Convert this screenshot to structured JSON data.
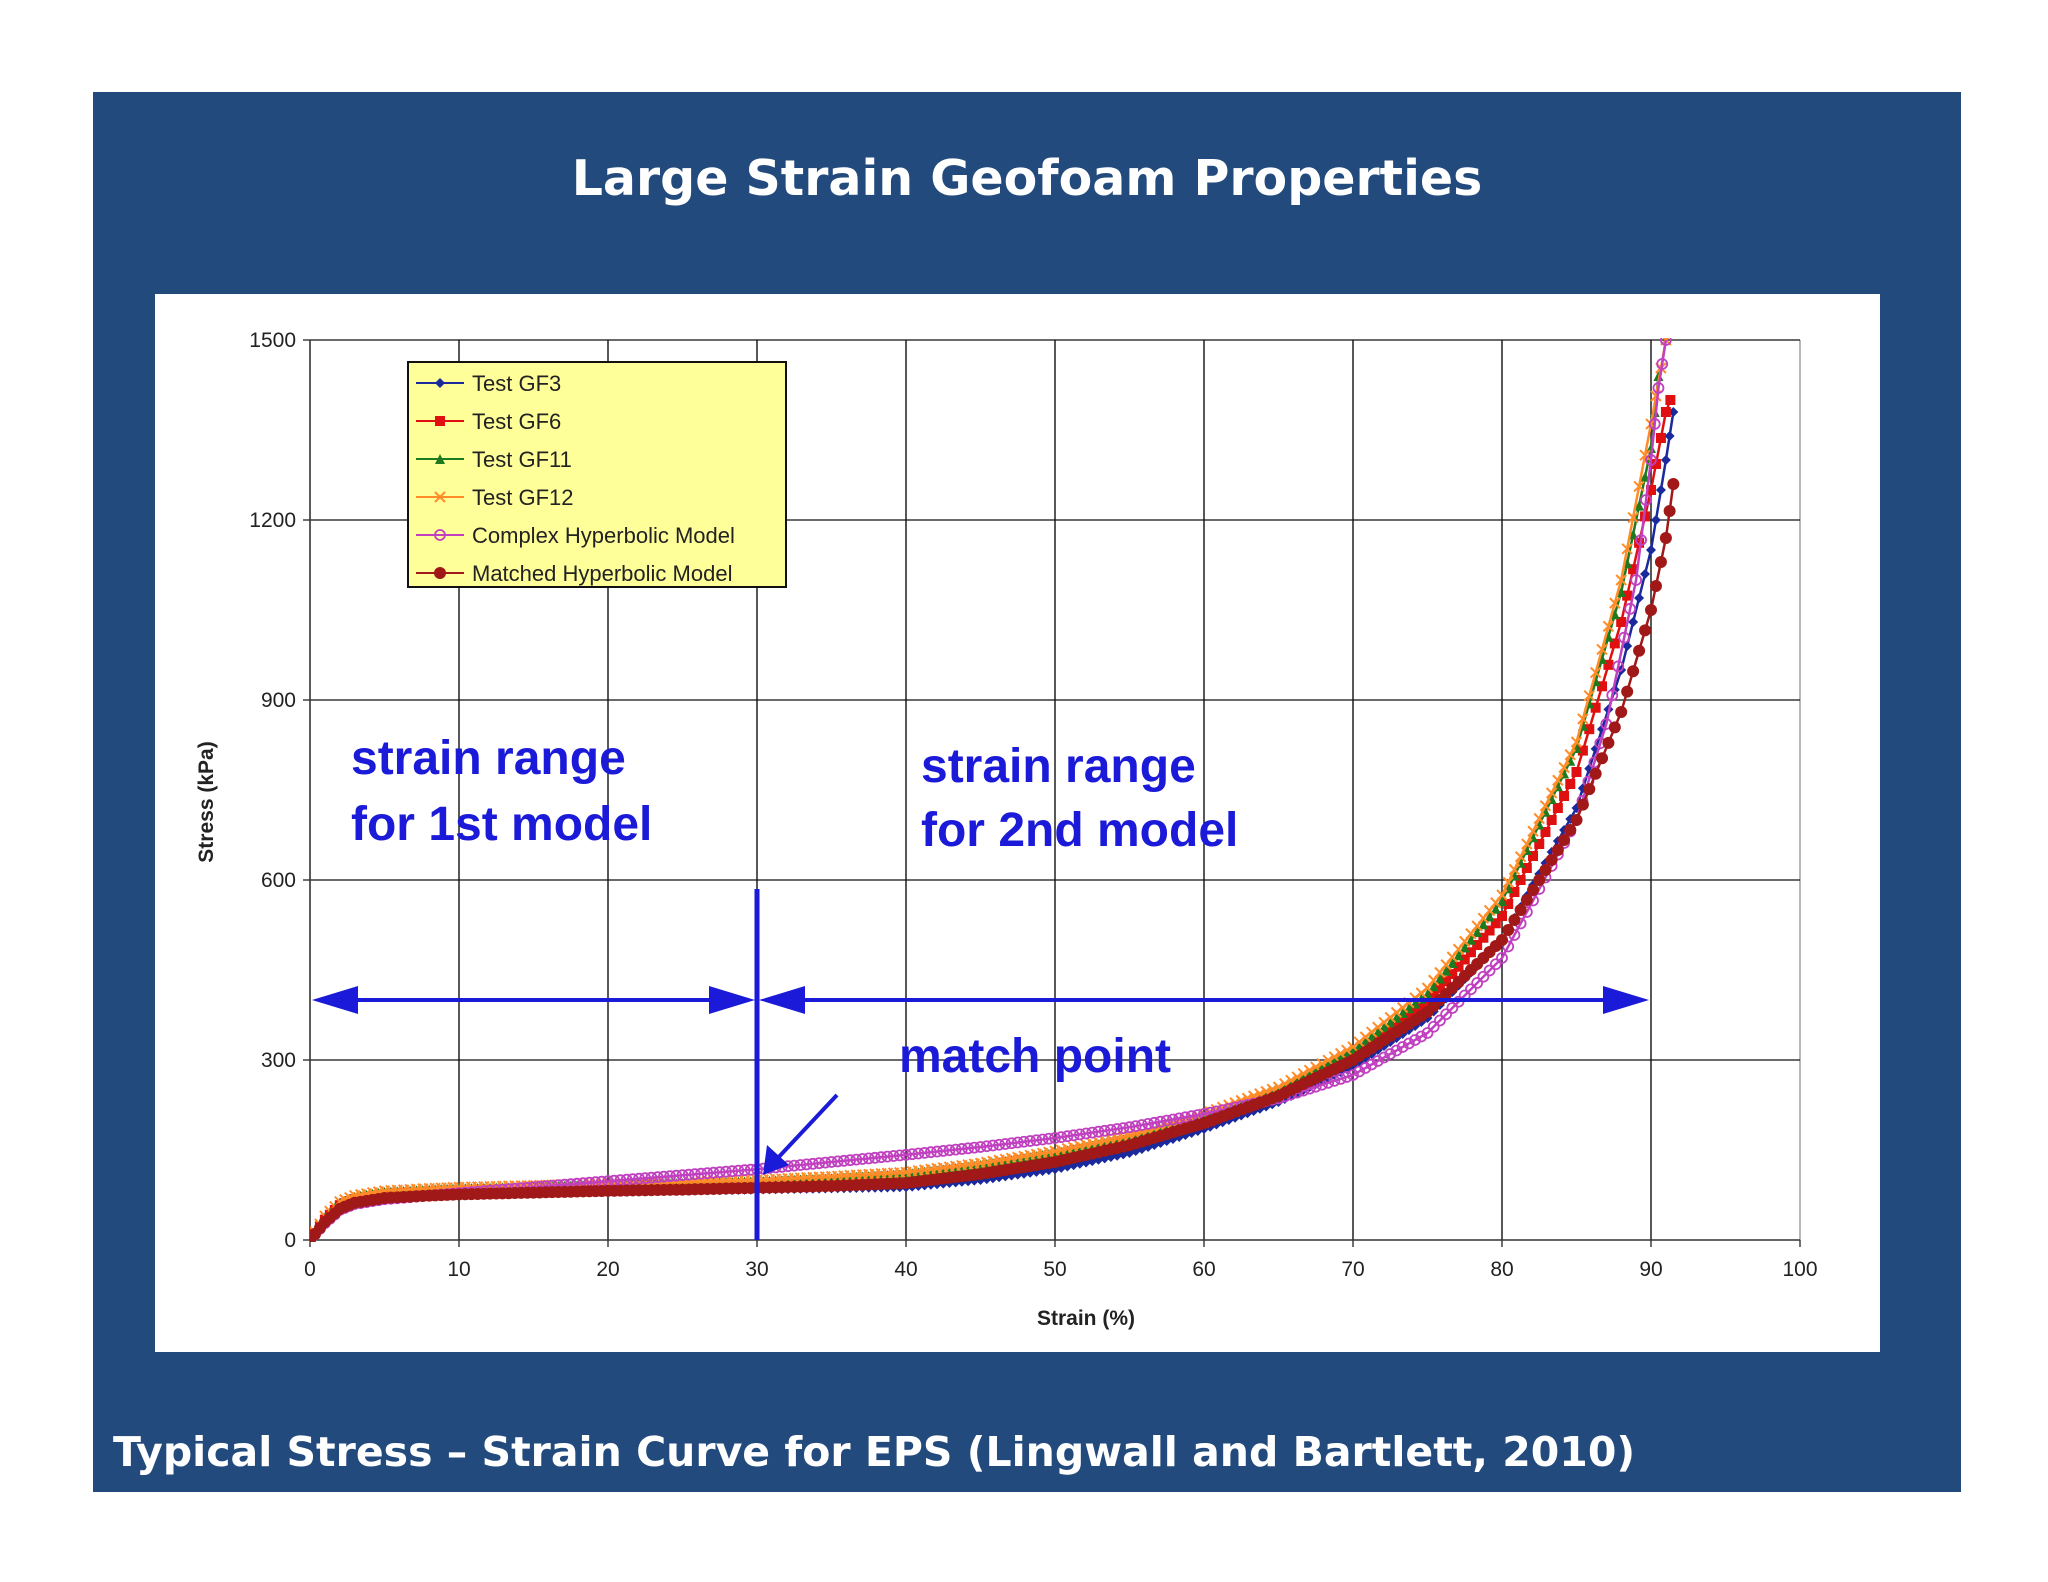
{
  "slide": {
    "title": "Large Strain Geofoam Properties",
    "caption": "Typical Stress – Strain Curve for EPS (Lingwall and Bartlett, 2010)",
    "background_color": "#234a7c"
  },
  "chart_data": {
    "type": "scatter",
    "xlabel": "Strain (%)",
    "ylabel": "Stress (kPa)",
    "xlim": [
      0,
      100
    ],
    "ylim": [
      0,
      1500
    ],
    "xticks": [
      0,
      10,
      20,
      30,
      40,
      50,
      60,
      70,
      80,
      90,
      100
    ],
    "yticks": [
      0,
      300,
      600,
      900,
      1200,
      1500
    ],
    "grid": true,
    "legend_position": "top-left",
    "series": [
      {
        "name": "Test GF3",
        "color": "#1a2a9c",
        "marker": "diamond",
        "x": [
          0,
          1,
          2,
          3,
          5,
          8,
          10,
          15,
          20,
          25,
          30,
          35,
          40,
          45,
          50,
          55,
          60,
          65,
          70,
          75,
          80,
          85,
          88,
          90,
          91,
          91.5
        ],
        "y": [
          0,
          30,
          52,
          62,
          70,
          74,
          76,
          78,
          80,
          82,
          84,
          86,
          88,
          100,
          118,
          145,
          185,
          230,
          290,
          370,
          500,
          720,
          950,
          1150,
          1300,
          1380
        ]
      },
      {
        "name": "Test GF6",
        "color": "#e01010",
        "marker": "square",
        "x": [
          0,
          1,
          2,
          3,
          5,
          8,
          10,
          15,
          20,
          25,
          30,
          35,
          40,
          45,
          50,
          55,
          60,
          65,
          70,
          75,
          80,
          85,
          88,
          90,
          91,
          91.3
        ],
        "y": [
          0,
          34,
          58,
          68,
          76,
          80,
          82,
          85,
          88,
          90,
          92,
          96,
          100,
          115,
          135,
          160,
          195,
          240,
          305,
          395,
          540,
          780,
          1030,
          1250,
          1380,
          1400
        ]
      },
      {
        "name": "Test GF11",
        "color": "#1e7a1e",
        "marker": "triangle",
        "x": [
          0,
          1,
          2,
          3,
          5,
          8,
          10,
          15,
          20,
          25,
          30,
          35,
          40,
          45,
          50,
          55,
          60,
          65,
          70,
          75,
          80,
          85,
          88,
          90,
          90.5
        ],
        "y": [
          0,
          38,
          62,
          72,
          80,
          84,
          86,
          89,
          92,
          95,
          98,
          103,
          110,
          125,
          145,
          170,
          205,
          250,
          315,
          410,
          565,
          820,
          1080,
          1320,
          1440
        ]
      },
      {
        "name": "Test GF12",
        "color": "#ff8c28",
        "marker": "x",
        "x": [
          0,
          1,
          2,
          3,
          5,
          8,
          10,
          15,
          20,
          25,
          30,
          35,
          40,
          45,
          50,
          55,
          60,
          65,
          70,
          75,
          80,
          85,
          88,
          90,
          91
        ],
        "y": [
          0,
          40,
          64,
          74,
          82,
          86,
          88,
          91,
          94,
          97,
          100,
          106,
          113,
          128,
          148,
          174,
          210,
          255,
          322,
          420,
          575,
          830,
          1100,
          1360,
          1500
        ]
      },
      {
        "name": "Complex Hyperbolic Model",
        "color": "#c040c0",
        "marker": "circle-open",
        "x": [
          0,
          1,
          2,
          3,
          5,
          8,
          10,
          15,
          20,
          25,
          30,
          35,
          40,
          45,
          50,
          55,
          60,
          65,
          70,
          75,
          80,
          85,
          87,
          89,
          90,
          90.5,
          91
        ],
        "y": [
          0,
          28,
          50,
          60,
          68,
          74,
          78,
          88,
          98,
          108,
          118,
          130,
          142,
          155,
          170,
          188,
          210,
          236,
          275,
          345,
          470,
          700,
          860,
          1100,
          1300,
          1420,
          1500
        ]
      },
      {
        "name": "Matched Hyperbolic Model",
        "color": "#a01818",
        "marker": "circle-filled",
        "x": [
          0,
          1,
          2,
          3,
          5,
          8,
          10,
          15,
          20,
          25,
          30,
          35,
          40,
          45,
          50,
          55,
          60,
          65,
          70,
          75,
          80,
          85,
          88,
          90,
          91,
          91.5
        ],
        "y": [
          0,
          30,
          52,
          62,
          70,
          74,
          76,
          79,
          82,
          84,
          87,
          90,
          95,
          110,
          130,
          158,
          195,
          240,
          300,
          380,
          500,
          700,
          880,
          1050,
          1170,
          1260
        ]
      }
    ],
    "annotations": {
      "range1_line1": "strain range",
      "range1_line2": "for 1st model",
      "range2_line1": "strain range",
      "range2_line2": "for 2nd model",
      "match_point": "match point",
      "match_strain": 30,
      "arrow1_from": 0,
      "arrow1_to": 30,
      "arrow2_from": 30,
      "arrow2_to": 90,
      "arrow_level": 400,
      "annotation_color": "#1a1ad8"
    },
    "legend_background": "#ffff99"
  }
}
